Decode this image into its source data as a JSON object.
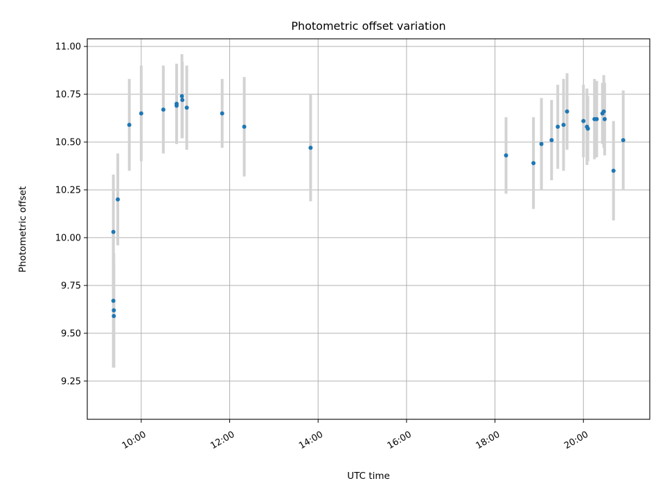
{
  "chart_data": {
    "type": "scatter",
    "title": "Photometric offset variation",
    "xlabel": "UTC time",
    "ylabel": "Photometric offset",
    "x_ticks": [
      {
        "hour": 10,
        "label": "10:00"
      },
      {
        "hour": 12,
        "label": "12:00"
      },
      {
        "hour": 14,
        "label": "14:00"
      },
      {
        "hour": 16,
        "label": "16:00"
      },
      {
        "hour": 18,
        "label": "18:00"
      },
      {
        "hour": 20,
        "label": "20:00"
      }
    ],
    "y_ticks": [
      {
        "value": 9.25,
        "label": "9.25"
      },
      {
        "value": 9.5,
        "label": "9.50"
      },
      {
        "value": 9.75,
        "label": "9.75"
      },
      {
        "value": 10.0,
        "label": "10.00"
      },
      {
        "value": 10.25,
        "label": "10.25"
      },
      {
        "value": 10.5,
        "label": "10.50"
      },
      {
        "value": 10.75,
        "label": "10.75"
      },
      {
        "value": 11.0,
        "label": "11.00"
      }
    ],
    "xlim_hours": [
      8.78,
      21.5
    ],
    "ylim": [
      9.05,
      11.04
    ],
    "grid": true,
    "marker_color": "#1f77b4",
    "errorbar_color": "#d3d3d3",
    "points": [
      {
        "t": 9.37,
        "y": 10.03,
        "err": 0.3
      },
      {
        "t": 9.37,
        "y": 9.67,
        "err": 0.35
      },
      {
        "t": 9.38,
        "y": 9.62,
        "err": 0.3
      },
      {
        "t": 9.38,
        "y": 9.59,
        "err": 0.27
      },
      {
        "t": 9.47,
        "y": 10.2,
        "err": 0.24
      },
      {
        "t": 9.73,
        "y": 10.59,
        "err": 0.24
      },
      {
        "t": 10.0,
        "y": 10.65,
        "err": 0.25
      },
      {
        "t": 10.5,
        "y": 10.67,
        "err": 0.23
      },
      {
        "t": 10.8,
        "y": 10.7,
        "err": 0.21
      },
      {
        "t": 10.8,
        "y": 10.69,
        "err": 0.2
      },
      {
        "t": 10.92,
        "y": 10.74,
        "err": 0.22
      },
      {
        "t": 10.93,
        "y": 10.72,
        "err": 0.2
      },
      {
        "t": 11.03,
        "y": 10.68,
        "err": 0.22
      },
      {
        "t": 11.83,
        "y": 10.65,
        "err": 0.18
      },
      {
        "t": 12.33,
        "y": 10.58,
        "err": 0.26
      },
      {
        "t": 13.83,
        "y": 10.47,
        "err": 0.28
      },
      {
        "t": 18.25,
        "y": 10.43,
        "err": 0.2
      },
      {
        "t": 18.87,
        "y": 10.39,
        "err": 0.24
      },
      {
        "t": 19.05,
        "y": 10.49,
        "err": 0.24
      },
      {
        "t": 19.28,
        "y": 10.51,
        "err": 0.21
      },
      {
        "t": 19.42,
        "y": 10.58,
        "err": 0.22
      },
      {
        "t": 19.55,
        "y": 10.59,
        "err": 0.24
      },
      {
        "t": 19.63,
        "y": 10.66,
        "err": 0.2
      },
      {
        "t": 20.0,
        "y": 10.61,
        "err": 0.19
      },
      {
        "t": 20.08,
        "y": 10.58,
        "err": 0.2
      },
      {
        "t": 20.1,
        "y": 10.57,
        "err": 0.17
      },
      {
        "t": 20.25,
        "y": 10.62,
        "err": 0.21
      },
      {
        "t": 20.3,
        "y": 10.62,
        "err": 0.2
      },
      {
        "t": 20.43,
        "y": 10.65,
        "err": 0.16
      },
      {
        "t": 20.46,
        "y": 10.66,
        "err": 0.19
      },
      {
        "t": 20.48,
        "y": 10.62,
        "err": 0.19
      },
      {
        "t": 20.68,
        "y": 10.35,
        "err": 0.26
      },
      {
        "t": 20.9,
        "y": 10.51,
        "err": 0.26
      }
    ]
  }
}
